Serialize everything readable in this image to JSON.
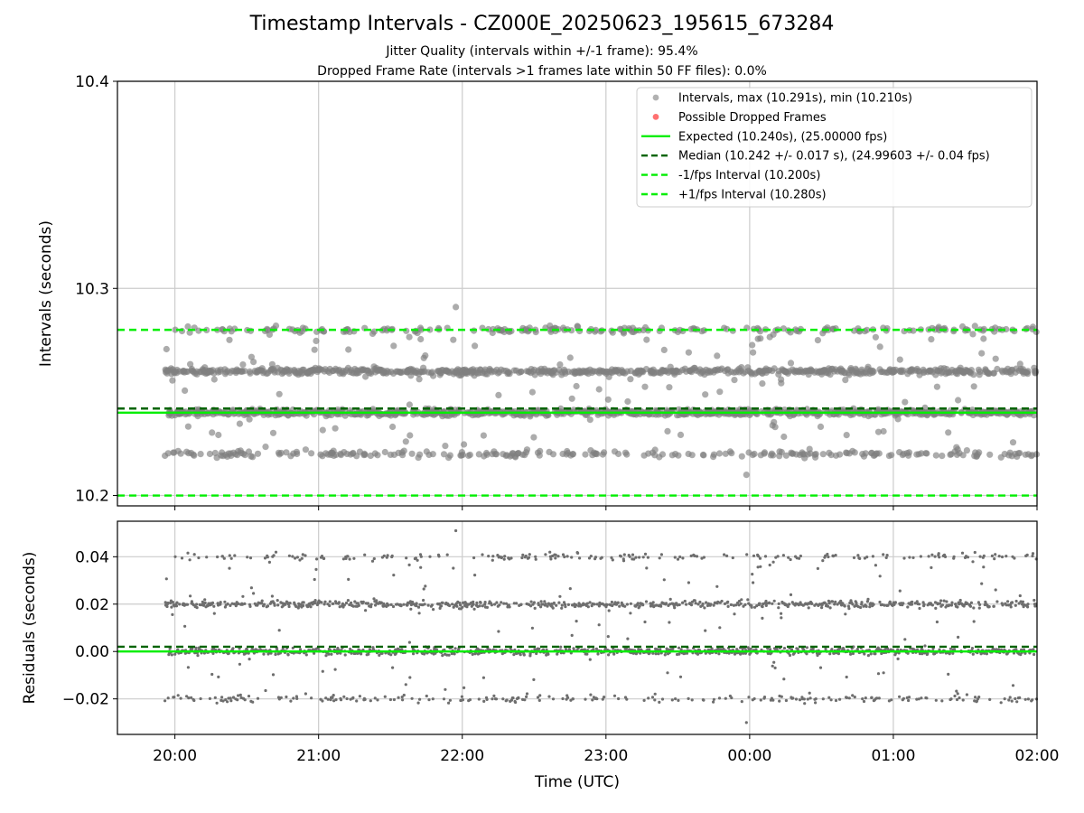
{
  "title": "Timestamp Intervals - CZ000E_20250623_195615_673284",
  "subtitle_line1": "Jitter Quality (intervals within +/-1 frame): 95.4%",
  "subtitle_line2": "Dropped Frame Rate (intervals >1 frames late within 50 FF files): 0.0%",
  "colors": {
    "points": "#808080",
    "dropped": "#ff4d4d",
    "expected": "#00ee00",
    "median": "#006400",
    "bounds": "#00ee00",
    "grid": "#cccccc"
  },
  "chart_data": [
    {
      "type": "scatter",
      "ylabel": "Intervals (seconds)",
      "xlabel": "",
      "xlim_hours": [
        19.6,
        26.0
      ],
      "ylim": [
        10.195,
        10.4
      ],
      "yticks": [
        10.2,
        10.3,
        10.4
      ],
      "ytick_labels": [
        "10.2",
        "10.3",
        "10.4"
      ],
      "grid": true,
      "legend_position": "top-right",
      "legend": [
        {
          "label": "Intervals, max (10.291s), min (10.210s)",
          "marker": "dot",
          "color": "#9e9e9e"
        },
        {
          "label": "Possible Dropped Frames",
          "marker": "dot",
          "color": "#ff4d4d"
        },
        {
          "label": "Expected (10.240s), (25.00000 fps)",
          "marker": "solid",
          "color": "#00ee00"
        },
        {
          "label": "Median (10.242 +/- 0.017 s), (24.99603 +/- 0.04 fps)",
          "marker": "dashed",
          "color": "#006400"
        },
        {
          "label": "-1/fps Interval (10.200s)",
          "marker": "dashed",
          "color": "#00ee00"
        },
        {
          "label": "+1/fps Interval (10.280s)",
          "marker": "dashed",
          "color": "#00ee00"
        }
      ],
      "series": [
        {
          "name": "Intervals",
          "time_range_hours": [
            19.93,
            26.0
          ],
          "count": 2100,
          "levels": [
            10.22,
            10.24,
            10.26,
            10.28
          ],
          "level_weights": [
            0.12,
            0.43,
            0.35,
            0.1
          ],
          "max": 10.291,
          "min": 10.21
        },
        {
          "name": "Possible Dropped Frames",
          "count": 0
        }
      ],
      "reference_lines": {
        "expected": 10.24,
        "median": 10.242,
        "minus_one_fps": 10.2,
        "plus_one_fps": 10.28
      }
    },
    {
      "type": "scatter",
      "xlabel": "Time (UTC)",
      "ylabel": "Residuals (seconds)",
      "xlim_hours": [
        19.6,
        26.0
      ],
      "xticks_hours": [
        20,
        21,
        22,
        23,
        24,
        25,
        26
      ],
      "xtick_labels": [
        "20:00",
        "21:00",
        "22:00",
        "23:00",
        "00:00",
        "01:00",
        "02:00"
      ],
      "ylim": [
        -0.035,
        0.055
      ],
      "yticks": [
        -0.02,
        0.0,
        0.02,
        0.04
      ],
      "ytick_labels": [
        "−0.02",
        "0.00",
        "0.02",
        "0.04"
      ],
      "grid": true,
      "reference_lines": {
        "expected": 0.0,
        "median": 0.002
      }
    }
  ]
}
